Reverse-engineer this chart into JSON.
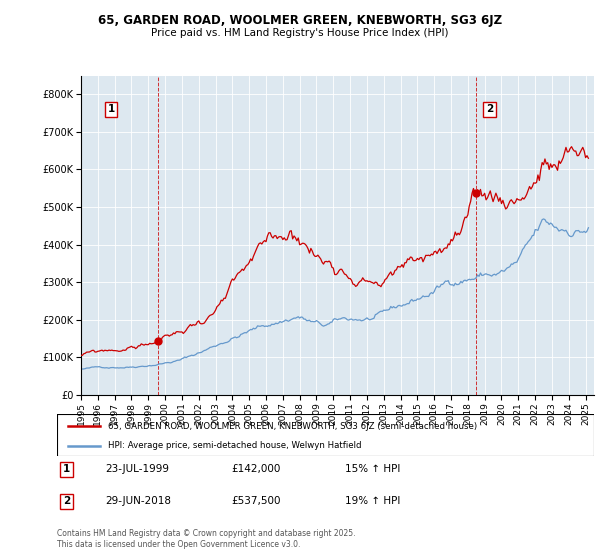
{
  "title": "65, GARDEN ROAD, WOOLMER GREEN, KNEBWORTH, SG3 6JZ",
  "subtitle": "Price paid vs. HM Land Registry's House Price Index (HPI)",
  "legend_line1": "65, GARDEN ROAD, WOOLMER GREEN, KNEBWORTH, SG3 6JZ (semi-detached house)",
  "legend_line2": "HPI: Average price, semi-detached house, Welwyn Hatfield",
  "footnote": "Contains HM Land Registry data © Crown copyright and database right 2025.\nThis data is licensed under the Open Government Licence v3.0.",
  "annotation1_label": "1",
  "annotation1_date": "23-JUL-1999",
  "annotation1_price": "£142,000",
  "annotation1_hpi": "15% ↑ HPI",
  "annotation2_label": "2",
  "annotation2_date": "29-JUN-2018",
  "annotation2_price": "£537,500",
  "annotation2_hpi": "19% ↑ HPI",
  "red_color": "#cc0000",
  "blue_color": "#6699cc",
  "chart_bg": "#dde8f0",
  "ylim_max": 850000,
  "yticks": [
    0,
    100000,
    200000,
    300000,
    400000,
    500000,
    600000,
    700000,
    800000
  ],
  "ann1_x": 1999.58,
  "ann1_y": 142000,
  "ann2_x": 2018.5,
  "ann2_y": 537500,
  "xmin": 1995.0,
  "xmax": 2025.5,
  "xticks": [
    1995,
    1996,
    1997,
    1998,
    1999,
    2000,
    2001,
    2002,
    2003,
    2004,
    2005,
    2006,
    2007,
    2008,
    2009,
    2010,
    2011,
    2012,
    2013,
    2014,
    2015,
    2016,
    2017,
    2018,
    2019,
    2020,
    2021,
    2022,
    2023,
    2024,
    2025
  ]
}
